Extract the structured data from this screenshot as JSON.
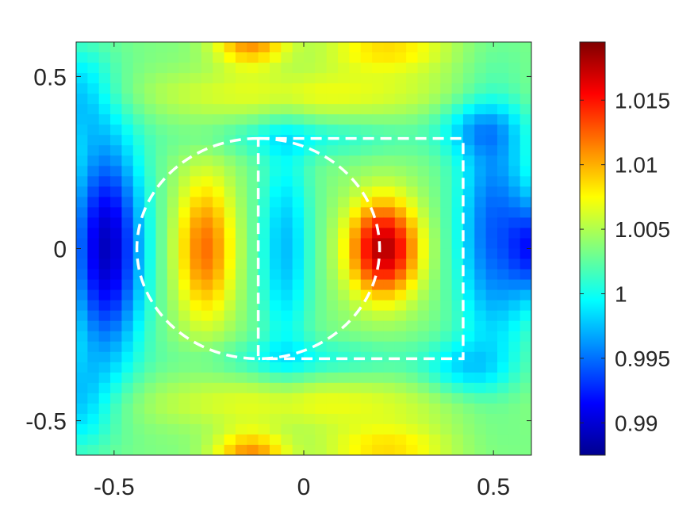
{
  "chart_data": {
    "type": "heatmap",
    "title": "",
    "xlabel": "",
    "ylabel": "",
    "xlim": [
      -0.6,
      0.6
    ],
    "ylim": [
      -0.6,
      0.6
    ],
    "xticks": [
      -0.5,
      0,
      0.5
    ],
    "xtick_labels": [
      "-0.5",
      "0",
      "0.5"
    ],
    "yticks": [
      0.5,
      0,
      -0.5
    ],
    "ytick_labels": [
      "0.5",
      "0",
      "-0.5"
    ],
    "grid": false,
    "colormap": "jet",
    "color_range": [
      0.9875,
      1.0195
    ],
    "colorbar": {
      "ticks": [
        1.015,
        1.01,
        1.005,
        1,
        0.995,
        0.99
      ],
      "tick_labels": [
        "1.015",
        "1.01",
        "1.005",
        "1",
        "0.995",
        "0.99"
      ]
    },
    "grid_size": [
      40,
      40
    ],
    "field_features": [
      {
        "x": 0.21,
        "y": 0.0,
        "value": 1.018
      },
      {
        "x": -0.26,
        "y": 0.0,
        "value": 1.012
      },
      {
        "x": -0.05,
        "y": 0.0,
        "value": 0.997
      },
      {
        "x": -0.5,
        "y": 0.0,
        "value": 0.989
      },
      {
        "x": 0.55,
        "y": 0.0,
        "value": 0.993
      },
      {
        "x": -0.15,
        "y": 0.57,
        "value": 1.012
      },
      {
        "x": -0.15,
        "y": -0.57,
        "value": 1.012
      },
      {
        "x": 0.25,
        "y": 0.57,
        "value": 1.01
      },
      {
        "x": 0.25,
        "y": -0.57,
        "value": 1.01
      }
    ],
    "overlays": [
      {
        "shape": "semicircle",
        "center": [
          -0.12,
          0
        ],
        "radius": 0.32,
        "style": "white dashed"
      },
      {
        "shape": "d-shape",
        "flat_side_x": -0.12,
        "center": [
          -0.12,
          0
        ],
        "radius": 0.32,
        "style": "white dashed"
      },
      {
        "shape": "rectangle",
        "x_range": [
          -0.12,
          0.42
        ],
        "y_range": [
          -0.32,
          0.32
        ],
        "style": "white dashed"
      }
    ]
  }
}
